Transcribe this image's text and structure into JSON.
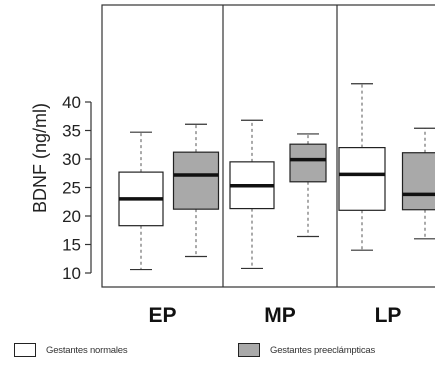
{
  "chart_data": {
    "type": "boxplot",
    "ylabel": "BDNF (ng/ml)",
    "ylim": [
      9,
      45
    ],
    "yticks": [
      10,
      15,
      20,
      25,
      30,
      35,
      40
    ],
    "categories": [
      "EP",
      "MP",
      "LP"
    ],
    "series": [
      {
        "name": "Gestantes normales",
        "color": "#ffffff",
        "boxes": [
          {
            "min": 10.6,
            "q1": 18.3,
            "median": 23.0,
            "q3": 27.7,
            "max": 34.7
          },
          {
            "min": 10.8,
            "q1": 21.3,
            "median": 25.3,
            "q3": 29.5,
            "max": 36.8
          },
          {
            "min": 14.0,
            "q1": 21.0,
            "median": 27.3,
            "q3": 32.0,
            "max": 43.2
          }
        ]
      },
      {
        "name": "Gestantes preeclámpticas",
        "color": "#a9a9a9",
        "boxes": [
          {
            "min": 12.9,
            "q1": 21.2,
            "median": 27.2,
            "q3": 31.2,
            "max": 36.1
          },
          {
            "min": 16.4,
            "q1": 26.0,
            "median": 29.9,
            "q3": 32.6,
            "max": 34.4
          },
          {
            "min": 16.0,
            "q1": 21.1,
            "median": 23.8,
            "q3": 31.1,
            "max": 35.4
          }
        ]
      }
    ],
    "grid": false,
    "legend": "bottom"
  }
}
